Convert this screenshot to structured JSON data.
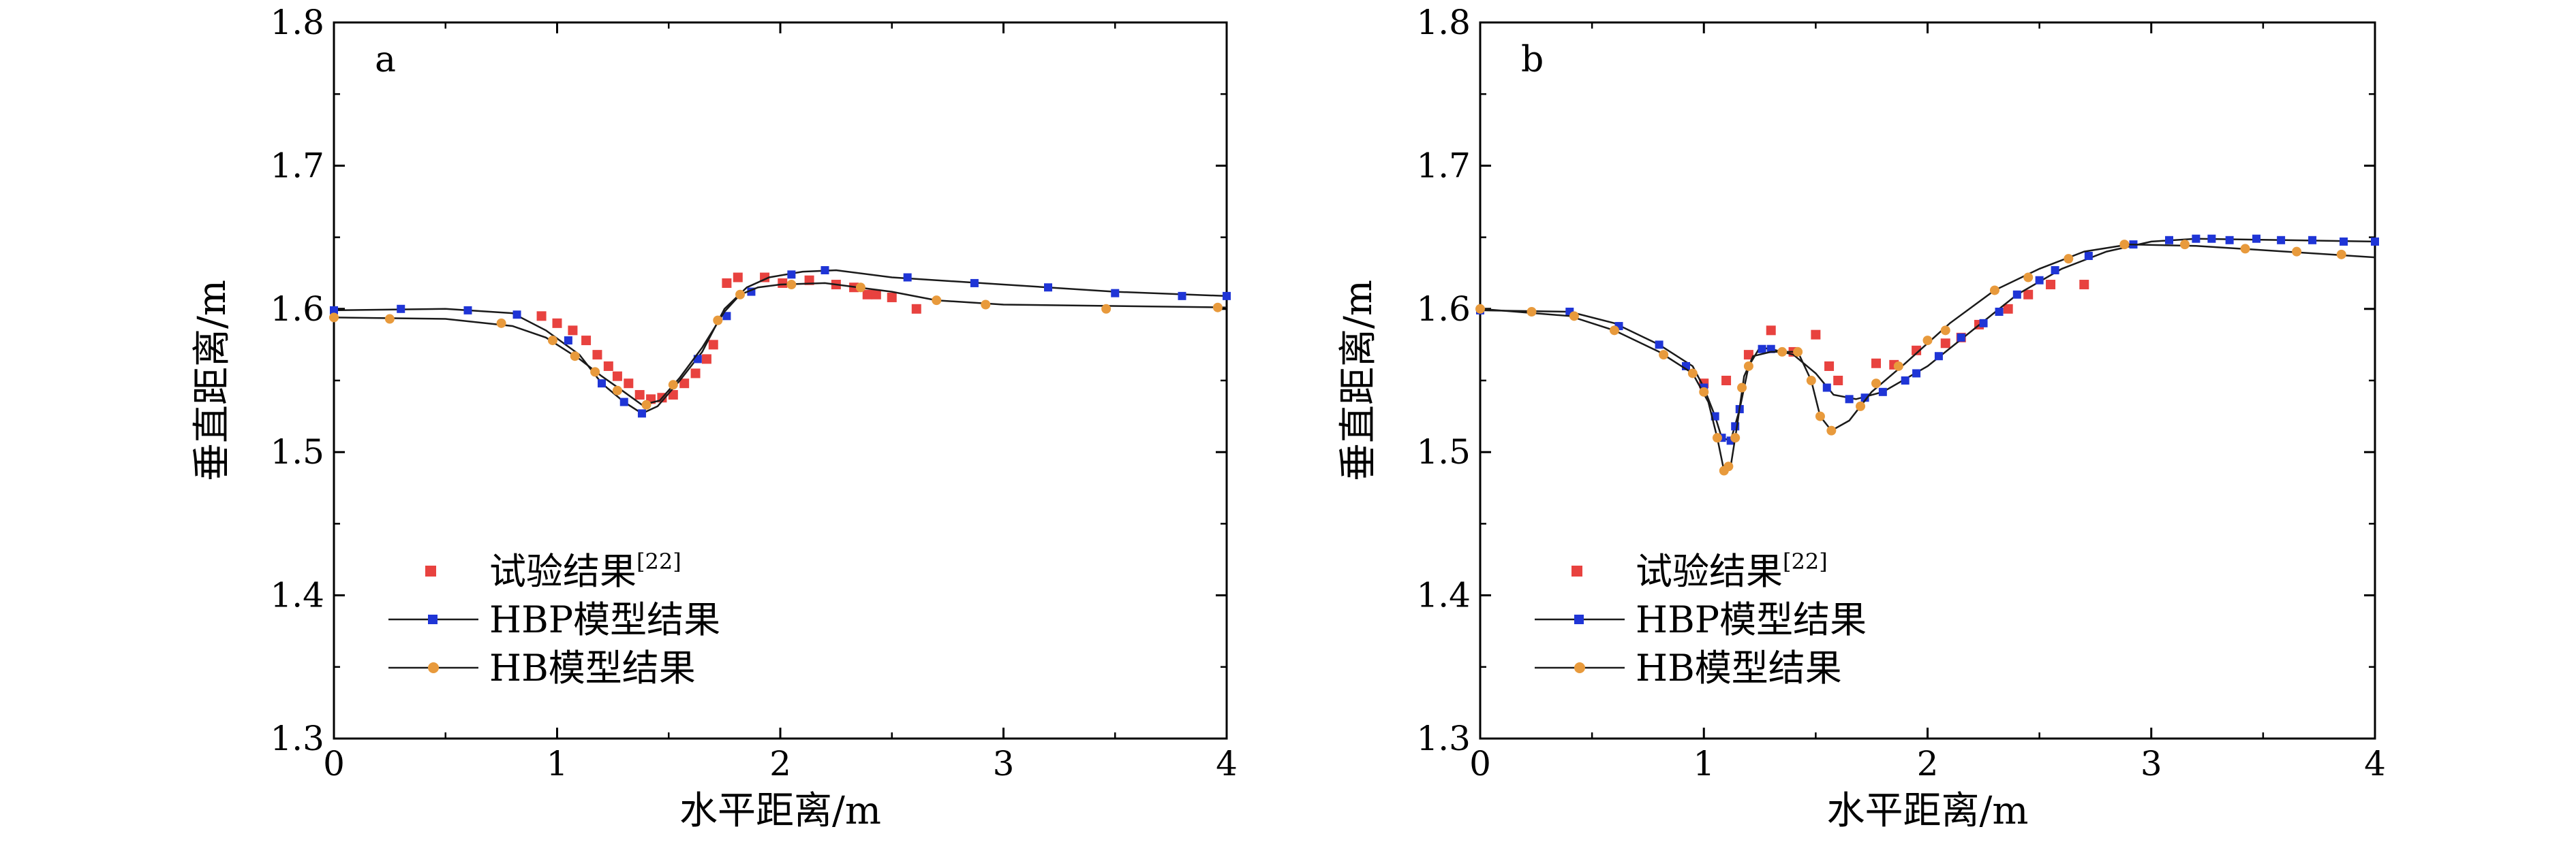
{
  "chart_data": [
    {
      "type": "scatter",
      "panel_label": "a",
      "xlabel": "水平距离/m",
      "ylabel": "垂直距离/m",
      "xlim": [
        0,
        4
      ],
      "ylim": [
        1.3,
        1.8
      ],
      "x_ticks": [
        "0",
        "1",
        "2",
        "3",
        "4"
      ],
      "y_ticks": [
        "1.3",
        "1.4",
        "1.5",
        "1.6",
        "1.7",
        "1.8"
      ],
      "legend_position": "bottom-left",
      "grid": false,
      "series": [
        {
          "name": "试验结果",
          "name_sup": "[22]",
          "style": "markers",
          "color": "#e8423f",
          "points": [
            [
              0.93,
              1.595
            ],
            [
              1.0,
              1.59
            ],
            [
              1.07,
              1.585
            ],
            [
              1.13,
              1.578
            ],
            [
              1.18,
              1.568
            ],
            [
              1.23,
              1.56
            ],
            [
              1.27,
              1.553
            ],
            [
              1.32,
              1.548
            ],
            [
              1.37,
              1.54
            ],
            [
              1.42,
              1.537
            ],
            [
              1.47,
              1.538
            ],
            [
              1.52,
              1.54
            ],
            [
              1.57,
              1.548
            ],
            [
              1.62,
              1.555
            ],
            [
              1.67,
              1.565
            ],
            [
              1.7,
              1.575
            ],
            [
              1.76,
              1.618
            ],
            [
              1.81,
              1.622
            ],
            [
              1.93,
              1.622
            ],
            [
              2.01,
              1.618
            ],
            [
              2.13,
              1.62
            ],
            [
              2.25,
              1.617
            ],
            [
              2.33,
              1.615
            ],
            [
              2.39,
              1.61
            ],
            [
              2.43,
              1.61
            ],
            [
              2.5,
              1.608
            ],
            [
              2.61,
              1.6
            ]
          ]
        },
        {
          "name": "HBP模型结果",
          "style": "line-markers",
          "color": "#1f35d6",
          "line": [
            [
              0,
              1.599
            ],
            [
              0.5,
              1.6
            ],
            [
              0.8,
              1.597
            ],
            [
              0.95,
              1.585
            ],
            [
              1.1,
              1.568
            ],
            [
              1.2,
              1.548
            ],
            [
              1.3,
              1.535
            ],
            [
              1.38,
              1.527
            ],
            [
              1.45,
              1.532
            ],
            [
              1.55,
              1.55
            ],
            [
              1.65,
              1.57
            ],
            [
              1.75,
              1.6
            ],
            [
              1.85,
              1.615
            ],
            [
              1.95,
              1.622
            ],
            [
              2.1,
              1.626
            ],
            [
              2.25,
              1.627
            ],
            [
              2.5,
              1.622
            ],
            [
              3.0,
              1.617
            ],
            [
              3.5,
              1.612
            ],
            [
              4.0,
              1.609
            ]
          ],
          "markers": [
            [
              0,
              1.599
            ],
            [
              0.3,
              1.6
            ],
            [
              0.6,
              1.599
            ],
            [
              0.82,
              1.596
            ],
            [
              1.05,
              1.578
            ],
            [
              1.2,
              1.548
            ],
            [
              1.3,
              1.535
            ],
            [
              1.38,
              1.527
            ],
            [
              1.63,
              1.565
            ],
            [
              1.76,
              1.595
            ],
            [
              1.87,
              1.612
            ],
            [
              2.05,
              1.624
            ],
            [
              2.2,
              1.627
            ],
            [
              2.57,
              1.622
            ],
            [
              2.87,
              1.618
            ],
            [
              3.2,
              1.615
            ],
            [
              3.5,
              1.611
            ],
            [
              3.8,
              1.609
            ],
            [
              4.0,
              1.609
            ]
          ]
        },
        {
          "name": "HB模型结果",
          "style": "line-markers",
          "color": "#e89a3c",
          "line": [
            [
              0,
              1.594
            ],
            [
              0.5,
              1.593
            ],
            [
              0.8,
              1.588
            ],
            [
              0.95,
              1.58
            ],
            [
              1.1,
              1.565
            ],
            [
              1.2,
              1.553
            ],
            [
              1.3,
              1.542
            ],
            [
              1.38,
              1.533
            ],
            [
              1.46,
              1.536
            ],
            [
              1.55,
              1.552
            ],
            [
              1.65,
              1.573
            ],
            [
              1.75,
              1.598
            ],
            [
              1.82,
              1.61
            ],
            [
              1.9,
              1.615
            ],
            [
              2.0,
              1.617
            ],
            [
              2.2,
              1.618
            ],
            [
              2.5,
              1.612
            ],
            [
              2.7,
              1.606
            ],
            [
              3.0,
              1.603
            ],
            [
              4.0,
              1.601
            ]
          ],
          "markers": [
            [
              0,
              1.594
            ],
            [
              0.25,
              1.593
            ],
            [
              0.75,
              1.59
            ],
            [
              0.98,
              1.578
            ],
            [
              1.08,
              1.567
            ],
            [
              1.17,
              1.556
            ],
            [
              1.27,
              1.543
            ],
            [
              1.4,
              1.533
            ],
            [
              1.52,
              1.547
            ],
            [
              1.72,
              1.592
            ],
            [
              1.82,
              1.61
            ],
            [
              2.05,
              1.617
            ],
            [
              2.36,
              1.615
            ],
            [
              2.7,
              1.606
            ],
            [
              2.92,
              1.603
            ],
            [
              3.46,
              1.6
            ],
            [
              3.96,
              1.601
            ]
          ]
        }
      ]
    },
    {
      "type": "scatter",
      "panel_label": "b",
      "xlabel": "水平距离/m",
      "ylabel": "垂直距离/m",
      "xlim": [
        0,
        4
      ],
      "ylim": [
        1.3,
        1.8
      ],
      "x_ticks": [
        "0",
        "1",
        "2",
        "3",
        "4"
      ],
      "y_ticks": [
        "1.3",
        "1.4",
        "1.5",
        "1.6",
        "1.7",
        "1.8"
      ],
      "legend_position": "bottom-left",
      "grid": false,
      "series": [
        {
          "name": "试验结果",
          "name_sup": "[22]",
          "style": "markers",
          "color": "#e8423f",
          "points": [
            [
              1.0,
              1.548
            ],
            [
              1.1,
              1.55
            ],
            [
              1.2,
              1.568
            ],
            [
              1.3,
              1.585
            ],
            [
              1.4,
              1.57
            ],
            [
              1.5,
              1.582
            ],
            [
              1.56,
              1.56
            ],
            [
              1.6,
              1.55
            ],
            [
              1.77,
              1.562
            ],
            [
              1.85,
              1.561
            ],
            [
              1.95,
              1.571
            ],
            [
              2.08,
              1.576
            ],
            [
              2.15,
              1.58
            ],
            [
              2.23,
              1.589
            ],
            [
              2.36,
              1.6
            ],
            [
              2.45,
              1.61
            ],
            [
              2.55,
              1.617
            ],
            [
              2.7,
              1.617
            ]
          ]
        },
        {
          "name": "HBP模型结果",
          "style": "line-markers",
          "color": "#1f35d6",
          "line": [
            [
              0,
              1.599
            ],
            [
              0.4,
              1.598
            ],
            [
              0.6,
              1.59
            ],
            [
              0.8,
              1.575
            ],
            [
              0.95,
              1.56
            ],
            [
              1.0,
              1.545
            ],
            [
              1.05,
              1.525
            ],
            [
              1.08,
              1.51
            ],
            [
              1.12,
              1.508
            ],
            [
              1.16,
              1.53
            ],
            [
              1.2,
              1.56
            ],
            [
              1.25,
              1.573
            ],
            [
              1.3,
              1.572
            ],
            [
              1.4,
              1.568
            ],
            [
              1.5,
              1.555
            ],
            [
              1.58,
              1.54
            ],
            [
              1.68,
              1.537
            ],
            [
              1.8,
              1.542
            ],
            [
              2.0,
              1.56
            ],
            [
              2.2,
              1.585
            ],
            [
              2.4,
              1.61
            ],
            [
              2.6,
              1.628
            ],
            [
              2.8,
              1.64
            ],
            [
              3.0,
              1.647
            ],
            [
              3.2,
              1.649
            ],
            [
              3.6,
              1.648
            ],
            [
              4.0,
              1.647
            ]
          ],
          "markers": [
            [
              0,
              1.599
            ],
            [
              0.4,
              1.598
            ],
            [
              0.62,
              1.588
            ],
            [
              0.8,
              1.575
            ],
            [
              0.92,
              1.56
            ],
            [
              1.0,
              1.545
            ],
            [
              1.05,
              1.525
            ],
            [
              1.08,
              1.51
            ],
            [
              1.12,
              1.508
            ],
            [
              1.14,
              1.518
            ],
            [
              1.16,
              1.53
            ],
            [
              1.26,
              1.572
            ],
            [
              1.3,
              1.572
            ],
            [
              1.55,
              1.545
            ],
            [
              1.65,
              1.537
            ],
            [
              1.72,
              1.538
            ],
            [
              1.8,
              1.542
            ],
            [
              1.9,
              1.55
            ],
            [
              1.95,
              1.555
            ],
            [
              2.05,
              1.567
            ],
            [
              2.15,
              1.58
            ],
            [
              2.25,
              1.59
            ],
            [
              2.32,
              1.598
            ],
            [
              2.4,
              1.61
            ],
            [
              2.5,
              1.62
            ],
            [
              2.57,
              1.627
            ],
            [
              2.72,
              1.637
            ],
            [
              2.92,
              1.645
            ],
            [
              3.08,
              1.648
            ],
            [
              3.2,
              1.649
            ],
            [
              3.27,
              1.649
            ],
            [
              3.35,
              1.648
            ],
            [
              3.47,
              1.649
            ],
            [
              3.58,
              1.648
            ],
            [
              3.72,
              1.648
            ],
            [
              3.86,
              1.647
            ],
            [
              4.0,
              1.647
            ]
          ]
        },
        {
          "name": "HB模型结果",
          "style": "line-markers",
          "color": "#e89a3c",
          "line": [
            [
              0,
              1.6
            ],
            [
              0.4,
              1.595
            ],
            [
              0.6,
              1.585
            ],
            [
              0.8,
              1.57
            ],
            [
              0.95,
              1.555
            ],
            [
              1.02,
              1.535
            ],
            [
              1.06,
              1.51
            ],
            [
              1.09,
              1.487
            ],
            [
              1.12,
              1.49
            ],
            [
              1.15,
              1.52
            ],
            [
              1.18,
              1.553
            ],
            [
              1.22,
              1.567
            ],
            [
              1.3,
              1.57
            ],
            [
              1.42,
              1.57
            ],
            [
              1.48,
              1.55
            ],
            [
              1.52,
              1.525
            ],
            [
              1.57,
              1.515
            ],
            [
              1.65,
              1.522
            ],
            [
              1.75,
              1.542
            ],
            [
              1.9,
              1.562
            ],
            [
              2.1,
              1.59
            ],
            [
              2.3,
              1.613
            ],
            [
              2.5,
              1.628
            ],
            [
              2.7,
              1.64
            ],
            [
              2.9,
              1.645
            ],
            [
              3.2,
              1.644
            ],
            [
              3.6,
              1.64
            ],
            [
              4.0,
              1.636
            ]
          ],
          "markers": [
            [
              0,
              1.6
            ],
            [
              0.23,
              1.598
            ],
            [
              0.42,
              1.595
            ],
            [
              0.6,
              1.585
            ],
            [
              0.82,
              1.568
            ],
            [
              0.95,
              1.555
            ],
            [
              1.0,
              1.542
            ],
            [
              1.06,
              1.51
            ],
            [
              1.09,
              1.487
            ],
            [
              1.11,
              1.49
            ],
            [
              1.14,
              1.51
            ],
            [
              1.17,
              1.545
            ],
            [
              1.2,
              1.56
            ],
            [
              1.35,
              1.57
            ],
            [
              1.42,
              1.57
            ],
            [
              1.48,
              1.55
            ],
            [
              1.52,
              1.525
            ],
            [
              1.57,
              1.515
            ],
            [
              1.7,
              1.532
            ],
            [
              1.77,
              1.548
            ],
            [
              1.87,
              1.56
            ],
            [
              2.0,
              1.578
            ],
            [
              2.08,
              1.585
            ],
            [
              2.3,
              1.613
            ],
            [
              2.45,
              1.622
            ],
            [
              2.63,
              1.635
            ],
            [
              2.88,
              1.645
            ],
            [
              3.15,
              1.645
            ],
            [
              3.42,
              1.642
            ],
            [
              3.65,
              1.64
            ],
            [
              3.85,
              1.638
            ]
          ]
        }
      ]
    }
  ]
}
